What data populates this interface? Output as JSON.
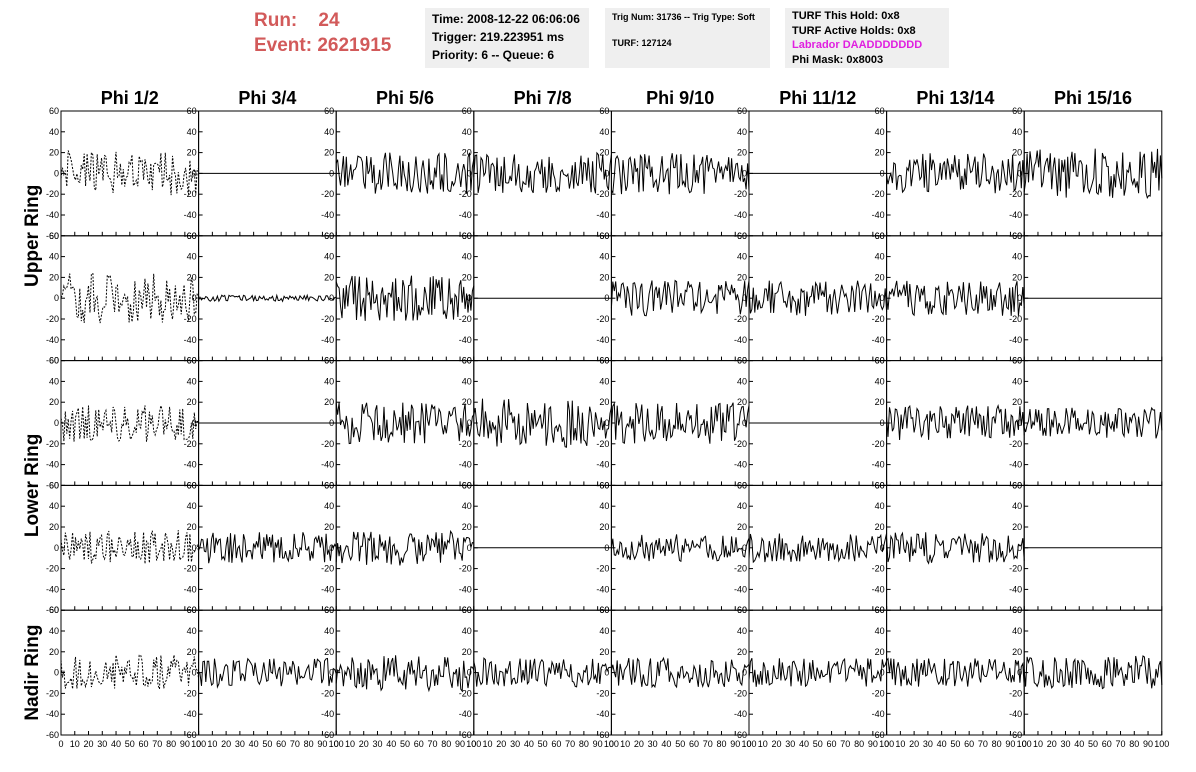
{
  "header": {
    "run_label": "Run:",
    "run_value": "24",
    "event_label": "Event:",
    "event_value": "2621915",
    "time": "Time: 2008-12-22 06:06:06",
    "trigger": "Trigger: 219.223951 ms",
    "priority": "Priority: 6 -- Queue: 6",
    "trig_num": "Trig Num: 31736 -- Trig Type: Soft",
    "turf": "TURF: 127124",
    "turf_this_hold": "TURF This Hold: 0x8",
    "turf_active_holds": "TURF Active Holds: 0x8",
    "labrador": "Labrador DAADDDDDDD",
    "phi_mask": "Phi Mask: 0x8003",
    "colors": {
      "run": "#d25a5a",
      "labrador": "#e020e0",
      "panel": "#efefef"
    }
  },
  "chart_data": {
    "type": "line",
    "columns": [
      "Phi 1/2",
      "Phi 3/4",
      "Phi 5/6",
      "Phi 7/8",
      "Phi 9/10",
      "Phi 11/12",
      "Phi 13/14",
      "Phi 15/16"
    ],
    "rows": [
      "Upper Ring",
      "Lower Ring",
      "Nadir Ring"
    ],
    "panel_rows": 5,
    "row_label_spans": [
      [
        "Upper Ring",
        0,
        1
      ],
      [
        "Lower Ring",
        2,
        3
      ],
      [
        "Nadir Ring",
        4,
        4
      ]
    ],
    "x_range": [
      0,
      100
    ],
    "y_range": [
      -60,
      60
    ],
    "y_ticks": [
      -60,
      -40,
      -20,
      0,
      20,
      40,
      60
    ],
    "x_ticks": [
      0,
      10,
      20,
      30,
      40,
      50,
      60,
      70,
      80,
      90,
      100
    ],
    "waveform_points": 96,
    "dashed_column": 0,
    "panels": [
      [
        22,
        0,
        20,
        20,
        20,
        0,
        20,
        24
      ],
      [
        24,
        3,
        22,
        0,
        17,
        17,
        17,
        0
      ],
      [
        18,
        0,
        20,
        24,
        20,
        0,
        17,
        15
      ],
      [
        17,
        15,
        17,
        0,
        13,
        15,
        15,
        0
      ],
      [
        17,
        14,
        18,
        14,
        14,
        14,
        14,
        16
      ]
    ]
  }
}
